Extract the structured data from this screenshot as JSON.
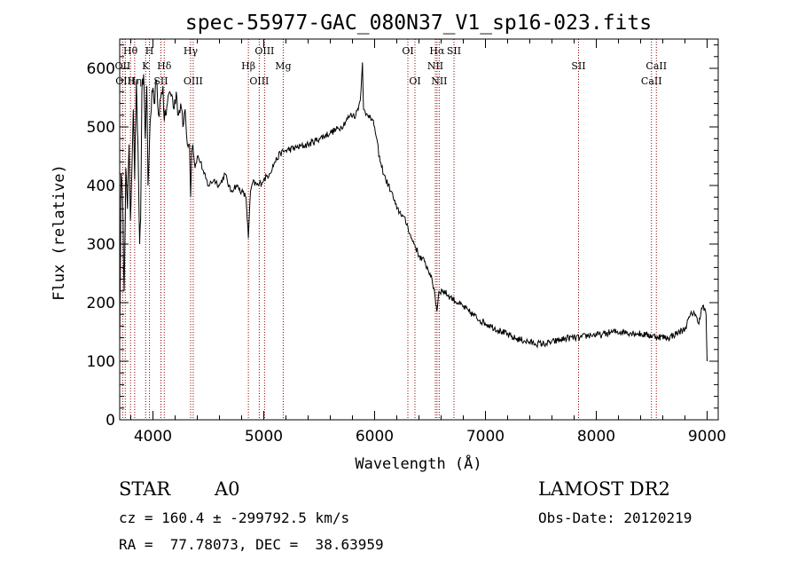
{
  "chart_data": {
    "type": "line",
    "title": "spec-55977-GAC_080N37_V1_sp16-023.fits",
    "xlabel": "Wavelength (Å)",
    "ylabel": "Flux (relative)",
    "xlim": [
      3700,
      9100
    ],
    "ylim": [
      0,
      650
    ],
    "xticks": [
      4000,
      5000,
      6000,
      7000,
      8000,
      9000
    ],
    "yticks": [
      0,
      100,
      200,
      300,
      400,
      500,
      600
    ],
    "grid": false,
    "line_color": "#000000",
    "marker_color": "#8b0000",
    "series": [
      {
        "x": [
          3700,
          3712,
          3725,
          3740,
          3755,
          3770,
          3785,
          3797,
          3810,
          3822,
          3835,
          3850,
          3865,
          3880,
          3889,
          3900,
          3915,
          3930,
          3945,
          3955,
          3968,
          3980,
          3995,
          4010,
          4030,
          4050,
          4070,
          4090,
          4102,
          4115,
          4130,
          4150,
          4170,
          4190,
          4210,
          4230,
          4250,
          4270,
          4290,
          4310,
          4330,
          4340,
          4350,
          4360,
          4380,
          4400,
          4430,
          4460,
          4500,
          4550,
          4600,
          4650,
          4700,
          4750,
          4800,
          4840,
          4861,
          4880,
          4900,
          4950,
          5000,
          5050,
          5100,
          5150,
          5200,
          5300,
          5400,
          5500,
          5600,
          5700,
          5780,
          5830,
          5870,
          5890,
          5900,
          5920,
          5960,
          6000,
          6050,
          6100,
          6150,
          6200,
          6250,
          6300,
          6330,
          6360,
          6400,
          6450,
          6500,
          6540,
          6562,
          6580,
          6620,
          6680,
          6750,
          6850,
          6950,
          7050,
          7150,
          7250,
          7350,
          7450,
          7550,
          7650,
          7750,
          7850,
          7950,
          8050,
          8150,
          8250,
          8350,
          8450,
          8550,
          8650,
          8750,
          8800,
          8840,
          8880,
          8920,
          8960,
          8990,
          9000
        ],
        "y": [
          130,
          420,
          380,
          220,
          430,
          360,
          470,
          340,
          430,
          530,
          410,
          580,
          470,
          300,
          340,
          560,
          590,
          480,
          570,
          400,
          470,
          520,
          560,
          540,
          580,
          520,
          550,
          570,
          510,
          520,
          540,
          560,
          555,
          530,
          560,
          520,
          540,
          500,
          530,
          470,
          470,
          380,
          460,
          470,
          430,
          450,
          440,
          420,
          400,
          410,
          400,
          420,
          390,
          400,
          390,
          380,
          310,
          390,
          405,
          400,
          410,
          420,
          440,
          455,
          460,
          465,
          470,
          480,
          490,
          500,
          520,
          520,
          545,
          610,
          530,
          520,
          520,
          500,
          440,
          410,
          390,
          360,
          350,
          330,
          310,
          300,
          280,
          270,
          250,
          220,
          185,
          220,
          220,
          210,
          200,
          185,
          170,
          160,
          150,
          140,
          135,
          130,
          130,
          135,
          140,
          140,
          145,
          145,
          150,
          150,
          148,
          145,
          142,
          140,
          150,
          155,
          175,
          185,
          165,
          195,
          180,
          100
        ]
      }
    ],
    "lines": [
      {
        "x": 3727,
        "labels": [
          "OII"
        ],
        "row": 2
      },
      {
        "x": 3750,
        "labels": [
          "OIII"
        ],
        "row": 3
      },
      {
        "x": 3797,
        "labels": [
          "Hθ"
        ],
        "row": 1
      },
      {
        "x": 3835,
        "labels": [
          "Hη"
        ],
        "row": 3
      },
      {
        "x": 3934,
        "labels": [
          "K"
        ],
        "row": 2
      },
      {
        "x": 3968,
        "labels": [
          "H"
        ],
        "row": 1
      },
      {
        "x": 4072,
        "labels": [
          "SII"
        ],
        "row": 3
      },
      {
        "x": 4102,
        "labels": [
          "Hδ"
        ],
        "row": 2
      },
      {
        "x": 4340,
        "labels": [
          "Hγ"
        ],
        "row": 1
      },
      {
        "x": 4363,
        "labels": [
          "OIII"
        ],
        "row": 3
      },
      {
        "x": 4861,
        "labels": [
          "Hβ"
        ],
        "row": 2
      },
      {
        "x": 4959,
        "labels": [
          "OIII"
        ],
        "row": 3
      },
      {
        "x": 5007,
        "labels": [
          "OIII"
        ],
        "row": 1
      },
      {
        "x": 5175,
        "labels": [
          "Mg"
        ],
        "row": 2
      },
      {
        "x": 6300,
        "labels": [
          "OI"
        ],
        "row": 1
      },
      {
        "x": 6364,
        "labels": [
          "OI"
        ],
        "row": 3
      },
      {
        "x": 6548,
        "labels": [
          "NII"
        ],
        "row": 2
      },
      {
        "x": 6563,
        "labels": [
          "Hα"
        ],
        "row": 1
      },
      {
        "x": 6583,
        "labels": [
          "NII"
        ],
        "row": 3
      },
      {
        "x": 6716,
        "labels": [
          "SII"
        ],
        "row": 1
      },
      {
        "x": 7840,
        "labels": [
          "SII"
        ],
        "row": 2
      },
      {
        "x": 8498,
        "labels": [
          "CaII"
        ],
        "row": 3
      },
      {
        "x": 8542,
        "labels": [
          "CaII"
        ],
        "row": 2
      }
    ]
  },
  "info": {
    "object_class": "STAR",
    "subclass": "A0",
    "survey": "LAMOST DR2",
    "cz_line": "cz = 160.4 ± -299792.5 km/s",
    "obs_date": "Obs-Date: 20120219",
    "coords": "RA =  77.78073, DEC =  38.63959"
  }
}
